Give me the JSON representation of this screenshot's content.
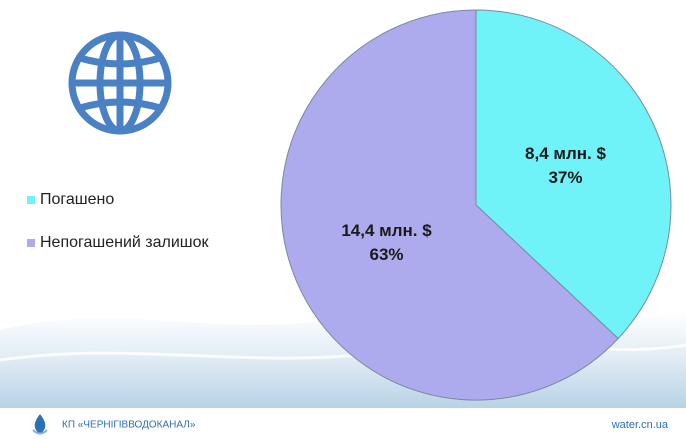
{
  "chart_data": {
    "type": "pie",
    "categories": [
      "Погашено",
      "Непогашений залишок"
    ],
    "values": [
      37,
      63
    ],
    "value_labels": [
      "37%",
      "63%"
    ],
    "amount_labels": [
      "8,4 млн. $",
      "14,4 млн. $"
    ],
    "colors": [
      "#6ff2f8",
      "#aeaaee"
    ],
    "legend": "left"
  },
  "footer": {
    "organization": "КП «ЧЕРНІГІВВОДОКАНАЛ»",
    "website": "water.cn.ua"
  }
}
